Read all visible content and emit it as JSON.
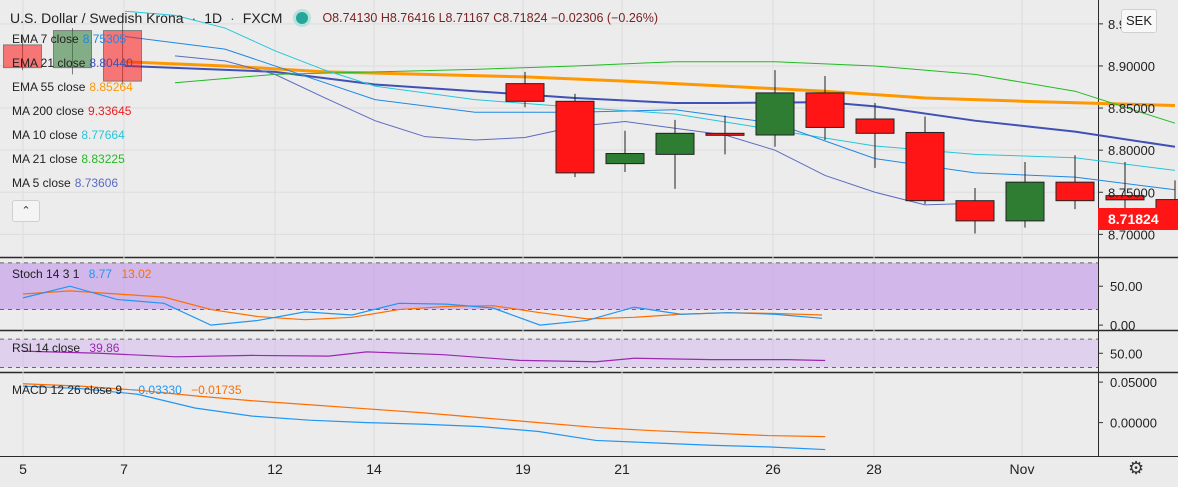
{
  "header": {
    "symbol_title": "U.S. Dollar / Swedish Krona",
    "interval": "1D",
    "exchange": "FXCM",
    "open": "O8.74130",
    "high": "H8.76416",
    "low": "L8.71167",
    "close": "C8.71824",
    "change": "−0.02306 (−0.26%)",
    "currency_button": "SEK"
  },
  "legend": [
    {
      "label": "EMA 7 close",
      "value": "8.75305",
      "color": "#1e88e5"
    },
    {
      "label": "EMA 21 close",
      "value": "8.80440",
      "color": "#3f51b5"
    },
    {
      "label": "EMA 55 close",
      "value": "8.85264",
      "color": "#ff9800"
    },
    {
      "label": "MA 200 close",
      "value": "9.33645",
      "color": "#e91e1e"
    },
    {
      "label": "MA 10 close",
      "value": "8.77664",
      "color": "#26c6da"
    },
    {
      "label": "MA 21 close",
      "value": "8.83225",
      "color": "#22bb22"
    },
    {
      "label": "MA 5 close",
      "value": "8.73606",
      "color": "#5c6bc0"
    }
  ],
  "panes": {
    "stoch": {
      "label": "Stoch 14 3 1",
      "k_value": "8.77",
      "d_value": "13.02",
      "k_color": "#2196f3",
      "d_color": "#ff6d00"
    },
    "rsi": {
      "label": "RSI 14 close",
      "value": "39.86",
      "color": "#9c27b0"
    },
    "macd": {
      "label": "MACD 12 26 close 9",
      "macd_value": "−0.03330",
      "signal_value": "−0.01735",
      "macd_color": "#2196f3",
      "signal_color": "#ff6d00"
    }
  },
  "chart_data": {
    "type": "candlestick",
    "x_tick_labels": [
      "5",
      "7",
      "12",
      "14",
      "19",
      "21",
      "26",
      "28",
      "Nov"
    ],
    "price_axis_ticks": [
      "8.70000",
      "8.75000",
      "8.80000",
      "8.85000",
      "8.90000",
      "8.95000"
    ],
    "last_price_label": "8.71824",
    "ylim": [
      8.685,
      8.97
    ],
    "candles": [
      {
        "x": 8,
        "o": 8.879,
        "h": 8.893,
        "l": 8.851,
        "c": 8.858
      },
      {
        "x": 9,
        "o": 8.858,
        "h": 8.867,
        "l": 8.768,
        "c": 8.773
      },
      {
        "x": 10,
        "o": 8.784,
        "h": 8.823,
        "l": 8.774,
        "c": 8.796
      },
      {
        "x": 11,
        "o": 8.795,
        "h": 8.836,
        "l": 8.754,
        "c": 8.82
      },
      {
        "x": 12,
        "o": 8.82,
        "h": 8.841,
        "l": 8.795,
        "c": 8.818
      },
      {
        "x": 13,
        "o": 8.818,
        "h": 8.895,
        "l": 8.804,
        "c": 8.868
      },
      {
        "x": 14,
        "o": 8.868,
        "h": 8.888,
        "l": 8.812,
        "c": 8.827
      },
      {
        "x": 15,
        "o": 8.837,
        "h": 8.856,
        "l": 8.779,
        "c": 8.82
      },
      {
        "x": 16,
        "o": 8.821,
        "h": 8.84,
        "l": 8.736,
        "c": 8.74
      },
      {
        "x": 17,
        "o": 8.74,
        "h": 8.755,
        "l": 8.701,
        "c": 8.716
      },
      {
        "x": 18,
        "o": 8.716,
        "h": 8.786,
        "l": 8.708,
        "c": 8.762
      },
      {
        "x": 19,
        "o": 8.762,
        "h": 8.794,
        "l": 8.73,
        "c": 8.74
      },
      {
        "x": 20,
        "o": 8.746,
        "h": 8.786,
        "l": 8.729,
        "c": 8.741
      },
      {
        "x": 21,
        "o": 8.7413,
        "h": 8.76416,
        "l": 8.71167,
        "c": 8.71824
      }
    ],
    "overlay_candles": [
      {
        "x": 0,
        "o": 8.925,
        "h": 8.935,
        "l": 8.895,
        "c": 8.898
      },
      {
        "x": 1,
        "o": 8.898,
        "h": 8.945,
        "l": 8.89,
        "c": 8.942
      },
      {
        "x": 2,
        "o": 8.942,
        "h": 8.955,
        "l": 8.878,
        "c": 8.882
      }
    ],
    "lines": [
      {
        "name": "EMA 55",
        "color": "#ff9800",
        "width": 3,
        "points": [
          [
            0,
            8.905
          ],
          [
            2,
            8.9
          ],
          [
            4,
            8.893
          ],
          [
            6,
            8.89
          ],
          [
            8,
            8.887
          ],
          [
            10,
            8.882
          ],
          [
            12,
            8.876
          ],
          [
            14,
            8.87
          ],
          [
            16,
            8.862
          ],
          [
            18,
            8.858
          ],
          [
            21,
            8.853
          ]
        ]
      },
      {
        "name": "EMA 21",
        "color": "#3f51b5",
        "width": 2,
        "points": [
          [
            0,
            8.9
          ],
          [
            3,
            8.893
          ],
          [
            5,
            8.878
          ],
          [
            7,
            8.87
          ],
          [
            9,
            8.862
          ],
          [
            11,
            8.856
          ],
          [
            12,
            8.856
          ],
          [
            14,
            8.857
          ],
          [
            15,
            8.852
          ],
          [
            17,
            8.835
          ],
          [
            19,
            8.822
          ],
          [
            21,
            8.804
          ]
        ]
      },
      {
        "name": "MA 21",
        "color": "#22bb22",
        "width": 1,
        "points": [
          [
            1,
            8.88
          ],
          [
            3,
            8.89
          ],
          [
            5,
            8.893
          ],
          [
            7,
            8.896
          ],
          [
            9,
            8.9
          ],
          [
            11,
            8.905
          ],
          [
            13,
            8.905
          ],
          [
            15,
            8.9
          ],
          [
            17,
            8.89
          ],
          [
            19,
            8.87
          ],
          [
            21,
            8.832
          ]
        ]
      },
      {
        "name": "MA 10",
        "color": "#26c6da",
        "width": 1,
        "points": [
          [
            0,
            8.965
          ],
          [
            1,
            8.96
          ],
          [
            2,
            8.945
          ],
          [
            3,
            8.918
          ],
          [
            4,
            8.895
          ],
          [
            5,
            8.876
          ],
          [
            7,
            8.86
          ],
          [
            9,
            8.851
          ],
          [
            11,
            8.843
          ],
          [
            13,
            8.824
          ],
          [
            15,
            8.805
          ],
          [
            17,
            8.795
          ],
          [
            19,
            8.791
          ],
          [
            21,
            8.776
          ]
        ]
      },
      {
        "name": "EMA 7",
        "color": "#1e88e5",
        "width": 1,
        "points": [
          [
            0,
            8.935
          ],
          [
            2,
            8.92
          ],
          [
            3,
            8.9
          ],
          [
            5,
            8.86
          ],
          [
            7,
            8.845
          ],
          [
            9,
            8.845
          ],
          [
            11,
            8.848
          ],
          [
            13,
            8.832
          ],
          [
            15,
            8.79
          ],
          [
            17,
            8.773
          ],
          [
            19,
            8.768
          ],
          [
            21,
            8.753
          ]
        ]
      },
      {
        "name": "MA 5",
        "color": "#5c6bc0",
        "width": 1,
        "points": [
          [
            1,
            8.912
          ],
          [
            2,
            8.906
          ],
          [
            3,
            8.89
          ],
          [
            4,
            8.862
          ],
          [
            5,
            8.835
          ],
          [
            6,
            8.816
          ],
          [
            7,
            8.812
          ],
          [
            8,
            8.815
          ],
          [
            9,
            8.828
          ],
          [
            10,
            8.834
          ],
          [
            11,
            8.826
          ],
          [
            12,
            8.818
          ],
          [
            13,
            8.8
          ],
          [
            14,
            8.77
          ],
          [
            15,
            8.75
          ],
          [
            16,
            8.735
          ],
          [
            17,
            8.737
          ]
        ]
      }
    ],
    "stoch": {
      "ylim": [
        -5,
        85
      ],
      "ticks": [
        "0.00",
        "50.00"
      ],
      "band": [
        20,
        80
      ],
      "k": [
        [
          0,
          35
        ],
        [
          1,
          50
        ],
        [
          2,
          33
        ],
        [
          3,
          28
        ],
        [
          4,
          0
        ],
        [
          5,
          6
        ],
        [
          6,
          17
        ],
        [
          7,
          13
        ],
        [
          8,
          28
        ],
        [
          9,
          27
        ],
        [
          10,
          22
        ],
        [
          11,
          0
        ],
        [
          12,
          6
        ],
        [
          13,
          23
        ],
        [
          14,
          14
        ],
        [
          15,
          16
        ],
        [
          16,
          14
        ],
        [
          17,
          8.77
        ]
      ],
      "d": [
        [
          0,
          40
        ],
        [
          1,
          44
        ],
        [
          2,
          40
        ],
        [
          3,
          36
        ],
        [
          4,
          20
        ],
        [
          5,
          11
        ],
        [
          6,
          7
        ],
        [
          7,
          10
        ],
        [
          8,
          20
        ],
        [
          9,
          24
        ],
        [
          10,
          25
        ],
        [
          11,
          16
        ],
        [
          12,
          8
        ],
        [
          13,
          10
        ],
        [
          14,
          14
        ],
        [
          15,
          16
        ],
        [
          16,
          15
        ],
        [
          17,
          13.02
        ]
      ]
    },
    "rsi": {
      "ylim": [
        25,
        80
      ],
      "ticks": [
        "50.00"
      ],
      "band": [
        30,
        70
      ],
      "points": [
        [
          0,
          53
        ],
        [
          2,
          50
        ],
        [
          4,
          45
        ],
        [
          6,
          47
        ],
        [
          8,
          46
        ],
        [
          9,
          52
        ],
        [
          11,
          48
        ],
        [
          13,
          40
        ],
        [
          15,
          38
        ],
        [
          16,
          43
        ],
        [
          18,
          41
        ],
        [
          20,
          41
        ],
        [
          21,
          39.86
        ]
      ]
    },
    "macd": {
      "ylim": [
        -0.04,
        0.06
      ],
      "ticks": [
        "0.00000",
        "0.05000"
      ],
      "macd": [
        [
          0,
          0.045
        ],
        [
          1,
          0.042
        ],
        [
          2,
          0.035
        ],
        [
          3,
          0.018
        ],
        [
          4,
          0.008
        ],
        [
          5,
          0.003
        ],
        [
          6,
          0.0
        ],
        [
          7,
          -0.002
        ],
        [
          8,
          -0.005
        ],
        [
          9,
          -0.011
        ],
        [
          10,
          -0.022
        ],
        [
          11,
          -0.025
        ],
        [
          12,
          -0.028
        ],
        [
          13,
          -0.03
        ],
        [
          14,
          -0.0333
        ]
      ],
      "signal": [
        [
          0,
          0.048
        ],
        [
          1,
          0.045
        ],
        [
          2,
          0.04
        ],
        [
          3,
          0.033
        ],
        [
          4,
          0.027
        ],
        [
          5,
          0.022
        ],
        [
          6,
          0.017
        ],
        [
          7,
          0.012
        ],
        [
          8,
          0.006
        ],
        [
          9,
          0.0
        ],
        [
          10,
          -0.006
        ],
        [
          11,
          -0.01
        ],
        [
          12,
          -0.013
        ],
        [
          13,
          -0.016
        ],
        [
          14,
          -0.01735
        ]
      ]
    }
  }
}
